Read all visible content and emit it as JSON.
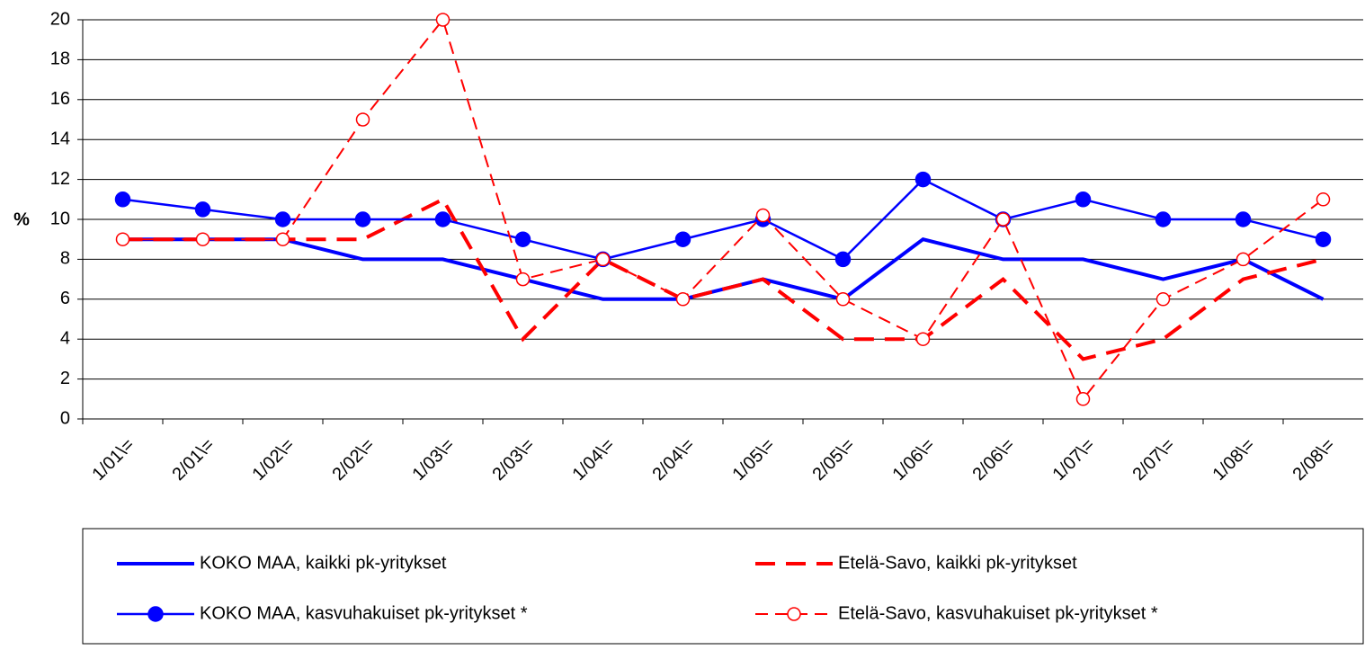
{
  "chart_data": {
    "type": "line",
    "y_label": "%",
    "categories": [
      "1/01\\=",
      "2/01\\=",
      "1/02\\=",
      "2/02\\=",
      "1/03\\=",
      "2/03\\=",
      "1/04\\=",
      "2/04\\=",
      "1/05\\=",
      "2/05\\=",
      "1/06\\=",
      "2/06\\=",
      "1/07\\=",
      "2/07\\=",
      "1/08\\=",
      "2/08\\="
    ],
    "series": [
      {
        "name": "KOKO MAA, kaikki pk-yritykset",
        "color": "#0000ff",
        "dash": "solid",
        "marker": "none",
        "width": 4,
        "values": [
          9,
          9,
          9,
          8,
          8,
          7,
          6,
          6,
          7,
          6,
          9,
          8,
          8,
          7,
          8,
          6
        ]
      },
      {
        "name": "Etelä-Savo, kaikki pk-yritykset",
        "color": "#ff0000",
        "dash": "long",
        "marker": "none",
        "width": 4,
        "values": [
          9,
          9,
          9,
          9,
          11,
          4,
          8,
          6,
          7,
          4,
          4,
          7,
          3,
          4,
          7,
          8
        ]
      },
      {
        "name": "KOKO MAA, kasvuhakuiset pk-yritykset *",
        "color": "#0000ff",
        "dash": "solid",
        "marker": "filled",
        "width": 2.5,
        "values": [
          11,
          10.5,
          10,
          10,
          10,
          9,
          8,
          9,
          10,
          8,
          12,
          10,
          11,
          10,
          10,
          9
        ]
      },
      {
        "name": "Etelä-Savo, kasvuhakuiset pk-yritykset *",
        "color": "#ff0000",
        "dash": "short",
        "marker": "open",
        "width": 2,
        "values": [
          9,
          9,
          9,
          15,
          20,
          7,
          8,
          6,
          10.2,
          6,
          4,
          10,
          1,
          6,
          8,
          11
        ]
      }
    ],
    "ylim": [
      0,
      20
    ],
    "yticks": [
      0,
      2,
      4,
      6,
      8,
      10,
      12,
      14,
      16,
      18,
      20
    ],
    "grid": true
  }
}
